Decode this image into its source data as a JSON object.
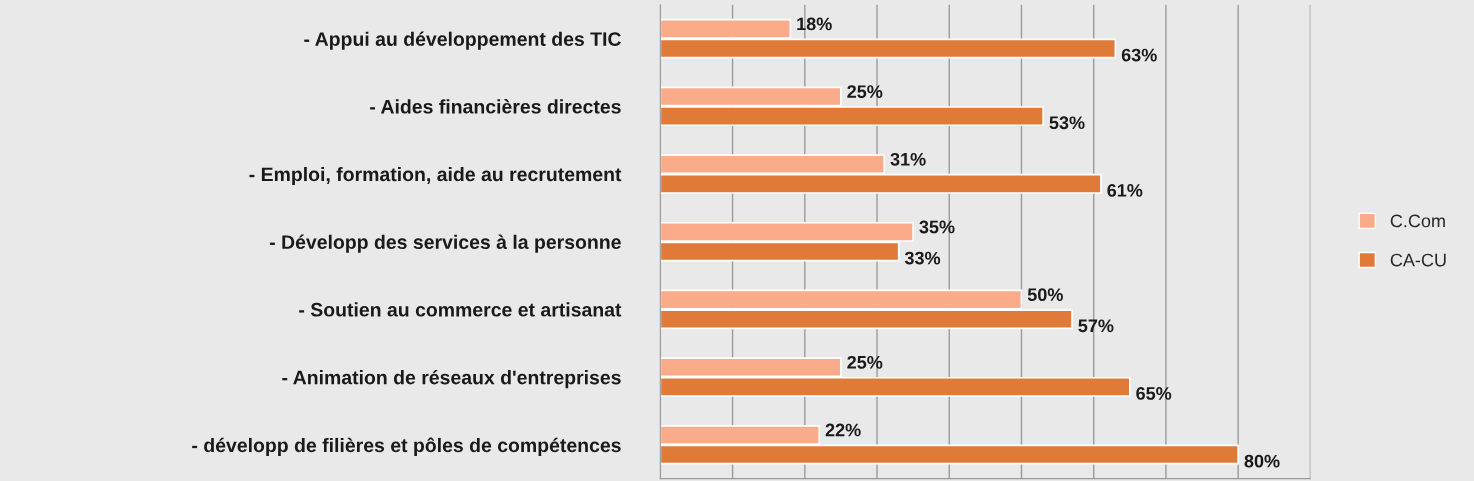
{
  "chart_data": {
    "type": "bar",
    "orientation": "horizontal",
    "categories": [
      "- Appui au développement des TIC",
      "- Aides financières directes",
      "- Emploi, formation, aide au recrutement",
      "- Développ des services à la personne",
      "- Soutien au commerce et artisanat",
      "- Animation de réseaux d'entreprises",
      "- développ de filières et pôles de compétences"
    ],
    "series": [
      {
        "name": "C.Com",
        "color": "#f9ab8a",
        "values": [
          18,
          25,
          31,
          35,
          50,
          25,
          22
        ],
        "value_labels": [
          "18%",
          "25%",
          "31%",
          "35%",
          "50%",
          "25%",
          "22%"
        ]
      },
      {
        "name": "CA-CU",
        "color": "#e07a38",
        "values": [
          63,
          53,
          61,
          33,
          57,
          65,
          80
        ],
        "value_labels": [
          "63%",
          "53%",
          "61%",
          "33%",
          "57%",
          "65%",
          "80%"
        ]
      }
    ],
    "xlim": [
      0,
      90
    ],
    "xticks": [
      {
        "value": 0,
        "label": null
      },
      {
        "value": 10,
        "label": null
      },
      {
        "value": 20,
        "label": null
      },
      {
        "value": 30,
        "label": null
      },
      {
        "value": 40,
        "label": null
      },
      {
        "value": 50,
        "label": null
      },
      {
        "value": 60,
        "label": null
      },
      {
        "value": 70,
        "label": null
      },
      {
        "value": 80,
        "label": null
      },
      {
        "value": 90,
        "label": null
      }
    ],
    "grid": "x",
    "legend": "right",
    "tick_labels": "y"
  }
}
